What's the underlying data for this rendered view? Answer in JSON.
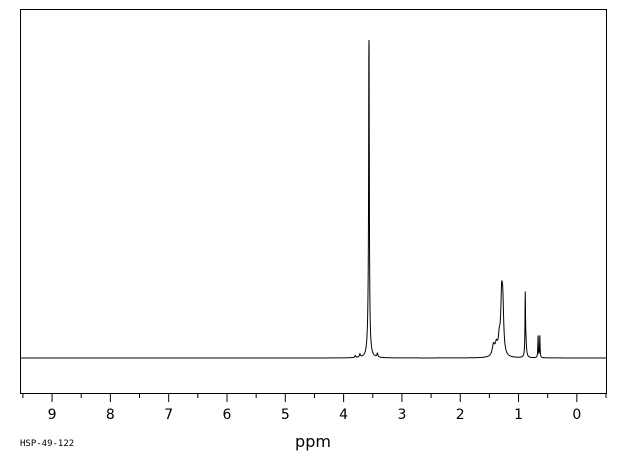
{
  "chart_data": {
    "type": "line",
    "xlabel": "ppm",
    "xlim": [
      9.55,
      -0.5
    ],
    "x_ticks": [
      9,
      8,
      7,
      6,
      5,
      4,
      3,
      2,
      1,
      0
    ],
    "grid": false,
    "code": "HSP-49-122",
    "peaks": [
      {
        "x": 3.565,
        "height": 1.0,
        "width": 0.006
      },
      {
        "x": 3.57,
        "height": 0.12,
        "width": 0.02
      },
      {
        "x": 3.8,
        "height": 0.006,
        "width": 0.01
      },
      {
        "x": 3.72,
        "height": 0.01,
        "width": 0.01
      },
      {
        "x": 3.42,
        "height": 0.012,
        "width": 0.01
      },
      {
        "x": 1.43,
        "height": 0.035,
        "width": 0.025
      },
      {
        "x": 1.38,
        "height": 0.035,
        "width": 0.025
      },
      {
        "x": 1.33,
        "height": 0.05,
        "width": 0.02
      },
      {
        "x": 1.29,
        "height": 0.16,
        "width": 0.018
      },
      {
        "x": 1.27,
        "height": 0.14,
        "width": 0.018
      },
      {
        "x": 0.885,
        "height": 0.18,
        "width": 0.005
      },
      {
        "x": 0.875,
        "height": 0.05,
        "width": 0.012
      },
      {
        "x": 0.665,
        "height": 0.07,
        "width": 0.005
      },
      {
        "x": 0.635,
        "height": 0.07,
        "width": 0.005
      }
    ]
  }
}
